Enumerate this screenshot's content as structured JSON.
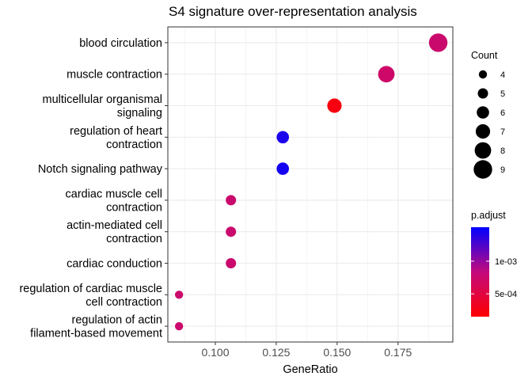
{
  "chart_data": {
    "type": "scatter",
    "title": "S4 signature over-representation analysis",
    "xlabel": "GeneRatio",
    "ylabel": "",
    "xlim": [
      0.0805,
      0.1975
    ],
    "xticks": [
      "0.100",
      "0.125",
      "0.150",
      "0.175"
    ],
    "xtick_values": [
      0.1,
      0.125,
      0.15,
      0.175
    ],
    "categories": [
      [
        "blood circulation"
      ],
      [
        "muscle contraction"
      ],
      [
        "multicellular organismal",
        "signaling"
      ],
      [
        "regulation of heart",
        "contraction"
      ],
      [
        "Notch signaling pathway"
      ],
      [
        "cardiac muscle cell",
        "contraction"
      ],
      [
        "actin-mediated cell",
        "contraction"
      ],
      [
        "cardiac conduction"
      ],
      [
        "regulation of cardiac muscle",
        "cell contraction"
      ],
      [
        "regulation of actin",
        "filament-based movement"
      ]
    ],
    "points": [
      {
        "x": 0.1915,
        "count": 9,
        "p_adjust": 0.00075
      },
      {
        "x": 0.1702,
        "count": 8,
        "p_adjust": 0.00072
      },
      {
        "x": 0.1489,
        "count": 7,
        "p_adjust": 0.00024
      },
      {
        "x": 0.1277,
        "count": 6,
        "p_adjust": 0.00142
      },
      {
        "x": 0.1277,
        "count": 6,
        "p_adjust": 0.00145
      },
      {
        "x": 0.1064,
        "count": 5,
        "p_adjust": 0.00075
      },
      {
        "x": 0.1064,
        "count": 5,
        "p_adjust": 0.00075
      },
      {
        "x": 0.1064,
        "count": 5,
        "p_adjust": 0.00075
      },
      {
        "x": 0.0851,
        "count": 4,
        "p_adjust": 0.00075
      },
      {
        "x": 0.0851,
        "count": 4,
        "p_adjust": 0.00075
      }
    ],
    "size_legend": {
      "title": "Count",
      "values": [
        4,
        5,
        6,
        7,
        8,
        9
      ],
      "labels": [
        "4",
        "5",
        "6",
        "7",
        "8",
        "9"
      ]
    },
    "color_legend": {
      "title": "p.adjust",
      "range": [
        0.00015,
        0.00152
      ],
      "ticks": [
        0.001,
        0.0005
      ],
      "tick_labels": [
        "1e-03",
        "5e-04"
      ],
      "low_color": "#ff0000",
      "high_color": "#0000ff"
    },
    "grid": true,
    "legend_position": "right"
  }
}
